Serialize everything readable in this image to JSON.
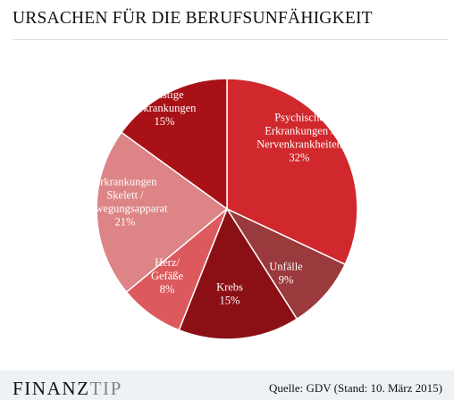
{
  "title": "URSACHEN FÜR DIE BERUFSUNFÄHIGKEIT",
  "chart_data": {
    "type": "pie",
    "title": "URSACHEN FÜR DIE BERUFSUNFÄHIGKEIT",
    "slices": [
      {
        "label": [
          "Psychische",
          "Erkrankungen /",
          "Nervenkrankheiten"
        ],
        "value": 32,
        "value_label": "32%",
        "color": "#d0282c"
      },
      {
        "label": [
          "Unfälle"
        ],
        "value": 9,
        "value_label": "9%",
        "color": "#9a3a3d"
      },
      {
        "label": [
          "Krebs"
        ],
        "value": 15,
        "value_label": "15%",
        "color": "#8b1015"
      },
      {
        "label": [
          "Herz/",
          "Gefäße"
        ],
        "value": 8,
        "value_label": "8%",
        "color": "#dc5a5e"
      },
      {
        "label": [
          "Erkrankungen",
          "Skelett /",
          "Bewegungsapparat"
        ],
        "value": 21,
        "value_label": "21%",
        "color": "#dd8486"
      },
      {
        "label": [
          "Sonstige",
          "Erkrankungen"
        ],
        "value": 15,
        "value_label": "15%",
        "color": "#a81217"
      }
    ]
  },
  "footer": {
    "brand_part1": "FINANZ",
    "brand_part2": "TIP",
    "source": "Quelle: GDV (Stand: 10. März 2015)"
  }
}
